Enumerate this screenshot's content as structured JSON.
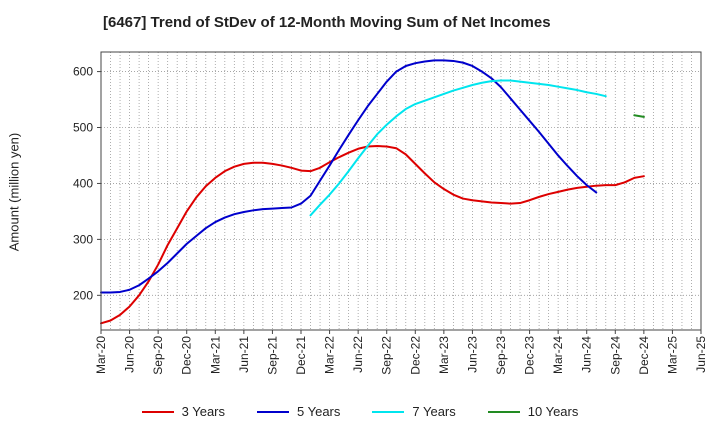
{
  "title": "[6467]  Trend of StDev of 12-Month Moving Sum of Net Incomes",
  "chart_data": {
    "type": "line",
    "title": "[6467]  Trend of StDev of 12-Month Moving Sum of Net Incomes",
    "xlabel": "",
    "ylabel": "Amount (million yen)",
    "x_ticks": [
      "Mar-20",
      "Jun-20",
      "Sep-20",
      "Dec-20",
      "Mar-21",
      "Jun-21",
      "Sep-21",
      "Dec-21",
      "Mar-22",
      "Jun-22",
      "Sep-22",
      "Dec-22",
      "Mar-23",
      "Jun-23",
      "Sep-23",
      "Dec-23",
      "Mar-24",
      "Jun-24",
      "Sep-24",
      "Dec-24",
      "Mar-25",
      "Jun-25"
    ],
    "y_ticks": [
      200,
      300,
      400,
      500,
      600
    ],
    "ylim": [
      138,
      635
    ],
    "grid": true,
    "legend_position": "bottom",
    "series": [
      {
        "name": "3 Years",
        "color": "#dd0000",
        "start_index": 0,
        "values": [
          150,
          155,
          165,
          180,
          200,
          225,
          255,
          290,
          320,
          350,
          375,
          395,
          410,
          422,
          430,
          435,
          437,
          437,
          435,
          432,
          428,
          423,
          422,
          428,
          438,
          447,
          455,
          462,
          466,
          467,
          466,
          463,
          452,
          435,
          418,
          402,
          390,
          380,
          373,
          370,
          368,
          366,
          365,
          364,
          365,
          370,
          376,
          381,
          385,
          389,
          392,
          394,
          396,
          397,
          397,
          402,
          410,
          413
        ]
      },
      {
        "name": "5 Years",
        "color": "#0000cc",
        "start_index": 0,
        "values": [
          205,
          205,
          206,
          210,
          218,
          230,
          243,
          258,
          275,
          292,
          306,
          320,
          331,
          339,
          345,
          349,
          352,
          354,
          355,
          356,
          357,
          364,
          378,
          405,
          432,
          460,
          487,
          513,
          538,
          560,
          582,
          600,
          610,
          615,
          618,
          620,
          620,
          619,
          616,
          610,
          600,
          588,
          572,
          552,
          532,
          512,
          492,
          471,
          450,
          431,
          413,
          397,
          384
        ]
      },
      {
        "name": "7 Years",
        "color": "#00e5ee",
        "start_index": 22,
        "values": [
          343,
          362,
          380,
          400,
          422,
          445,
          467,
          488,
          505,
          520,
          533,
          542,
          548,
          554,
          560,
          566,
          571,
          576,
          580,
          583,
          584,
          584,
          582,
          580,
          578,
          576,
          573,
          570,
          567,
          563,
          560,
          556
        ]
      },
      {
        "name": "10 Years",
        "color": "#228b22",
        "start_index": 56,
        "values": [
          522,
          519
        ]
      }
    ]
  }
}
